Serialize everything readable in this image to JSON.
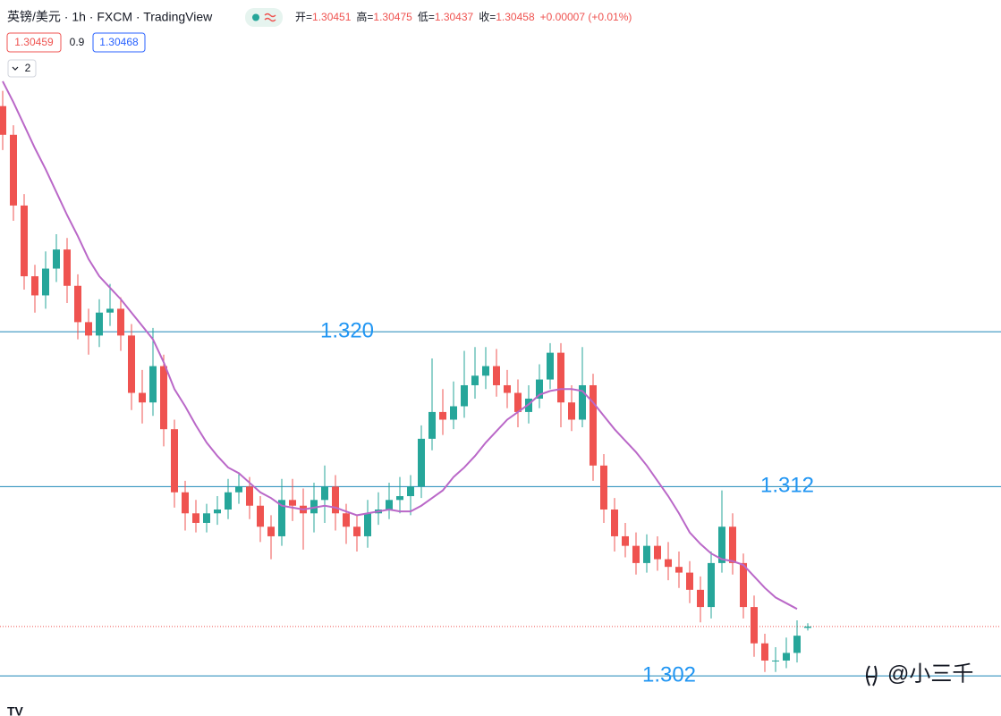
{
  "chart_data": {
    "type": "candlestick",
    "title": "英镑/美元 · 1h · FXCM · TradingView",
    "ohlc_legend": [
      {
        "label": "开=",
        "value": 1.30451
      },
      {
        "label": "高=",
        "value": 1.30475
      },
      {
        "label": "低=",
        "value": 1.30437
      },
      {
        "label": "收=",
        "value": 1.30458
      }
    ],
    "change_text": "+0.00007 (+0.01%)",
    "bid": "1.30459",
    "spread": "0.9",
    "ask": "1.30468",
    "indicator_count": "2",
    "watermark": "@小三千",
    "ylim": [
      1.2999,
      1.33735
    ],
    "up_color": "#26a69a",
    "down_color": "#ef5350",
    "ma_color": "#ba68c8",
    "level_color": "#2196f3",
    "levels": [
      {
        "value": 1.32,
        "label": "1.320"
      },
      {
        "value": 1.3119,
        "label": "1.312"
      },
      {
        "value": 1.302,
        "label": "1.302"
      }
    ],
    "open": [
      1.3318,
      1.3303,
      1.3266,
      1.3229,
      1.3219,
      1.3233,
      1.3243,
      1.3224,
      1.3205,
      1.3198,
      1.321,
      1.3212,
      1.3198,
      1.3168,
      1.3163,
      1.3182,
      1.3149,
      1.3116,
      1.3105,
      1.31,
      1.3105,
      1.3107,
      1.3116,
      1.3119,
      1.3109,
      1.3098,
      1.3093,
      1.3112,
      1.3109,
      1.3105,
      1.3112,
      1.3119,
      1.3105,
      1.3098,
      1.3093,
      1.3105,
      1.3107,
      1.3112,
      1.3114,
      1.3119,
      1.3144,
      1.3158,
      1.3154,
      1.3161,
      1.3172,
      1.3177,
      1.3182,
      1.3172,
      1.3168,
      1.3158,
      1.3165,
      1.3175,
      1.3189,
      1.3163,
      1.3154,
      1.3172,
      1.313,
      1.3107,
      1.3093,
      1.3088,
      1.3079,
      1.3088,
      1.3081,
      1.3077,
      1.3074,
      1.3065,
      1.3056,
      1.3079,
      1.3098,
      1.3079,
      1.3056,
      1.3037,
      1.3028,
      1.3028,
      1.3032,
      1.30451
    ],
    "high": [
      1.3326,
      1.3308,
      1.3272,
      1.3235,
      1.3242,
      1.3251,
      1.3249,
      1.323,
      1.3212,
      1.3217,
      1.3225,
      1.3218,
      1.3204,
      1.318,
      1.3202,
      1.3188,
      1.3154,
      1.3122,
      1.3112,
      1.311,
      1.3114,
      1.3123,
      1.3126,
      1.3124,
      1.3114,
      1.3104,
      1.3123,
      1.3123,
      1.3118,
      1.3121,
      1.313,
      1.3125,
      1.311,
      1.3104,
      1.3112,
      1.3116,
      1.3121,
      1.3124,
      1.3125,
      1.3151,
      1.3186,
      1.317,
      1.3174,
      1.319,
      1.3192,
      1.3192,
      1.3191,
      1.318,
      1.3175,
      1.3172,
      1.3183,
      1.3194,
      1.3194,
      1.3172,
      1.3192,
      1.3178,
      1.3136,
      1.3113,
      1.31,
      1.3095,
      1.3094,
      1.3093,
      1.309,
      1.3085,
      1.308,
      1.3072,
      1.3085,
      1.3117,
      1.3105,
      1.3084,
      1.3062,
      1.3042,
      1.3035,
      1.304,
      1.3049,
      1.30475
    ],
    "low": [
      1.3295,
      1.3258,
      1.3222,
      1.321,
      1.3212,
      1.3226,
      1.3215,
      1.3196,
      1.3188,
      1.3192,
      1.3203,
      1.319,
      1.3159,
      1.3152,
      1.3156,
      1.314,
      1.3108,
      1.3096,
      1.3095,
      1.3095,
      1.3099,
      1.3102,
      1.311,
      1.3102,
      1.309,
      1.3081,
      1.3088,
      1.3101,
      1.3086,
      1.3095,
      1.31,
      1.3096,
      1.3089,
      1.3085,
      1.3087,
      1.3099,
      1.3102,
      1.3105,
      1.3104,
      1.3113,
      1.3138,
      1.3146,
      1.3149,
      1.3155,
      1.3165,
      1.317,
      1.3166,
      1.316,
      1.315,
      1.3152,
      1.316,
      1.317,
      1.315,
      1.3148,
      1.315,
      1.3122,
      1.31,
      1.3085,
      1.3082,
      1.3073,
      1.3074,
      1.3075,
      1.307,
      1.3066,
      1.3058,
      1.3048,
      1.305,
      1.3074,
      1.3073,
      1.305,
      1.303,
      1.3022,
      1.3022,
      1.3024,
      1.3027,
      1.30437
    ],
    "close": [
      1.3303,
      1.3266,
      1.3229,
      1.3219,
      1.3233,
      1.3243,
      1.3224,
      1.3205,
      1.3198,
      1.321,
      1.3212,
      1.3198,
      1.3168,
      1.3163,
      1.3182,
      1.3149,
      1.3116,
      1.3105,
      1.31,
      1.3105,
      1.3107,
      1.3116,
      1.3119,
      1.3109,
      1.3098,
      1.3093,
      1.3112,
      1.3109,
      1.3105,
      1.3112,
      1.3119,
      1.3105,
      1.3098,
      1.3093,
      1.3105,
      1.3107,
      1.3112,
      1.3114,
      1.3119,
      1.3144,
      1.3158,
      1.3154,
      1.3161,
      1.3172,
      1.3177,
      1.3182,
      1.3172,
      1.3168,
      1.3158,
      1.3165,
      1.3175,
      1.3189,
      1.3163,
      1.3154,
      1.3172,
      1.313,
      1.3107,
      1.3093,
      1.3088,
      1.3079,
      1.3088,
      1.3081,
      1.3077,
      1.3074,
      1.3065,
      1.3056,
      1.3079,
      1.3098,
      1.3079,
      1.3056,
      1.3037,
      1.3028,
      1.3028,
      1.3032,
      1.3041,
      1.30458
    ],
    "ma": [
      1.3331,
      1.332,
      1.3308,
      1.3296,
      1.3285,
      1.3273,
      1.3261,
      1.325,
      1.3238,
      1.3229,
      1.3223,
      1.3217,
      1.321,
      1.3203,
      1.3196,
      1.3184,
      1.317,
      1.3161,
      1.3151,
      1.3142,
      1.3135,
      1.3129,
      1.3126,
      1.3121,
      1.3116,
      1.3113,
      1.3109,
      1.3108,
      1.3107,
      1.3108,
      1.3109,
      1.3108,
      1.3106,
      1.3104,
      1.3105,
      1.3106,
      1.3107,
      1.3106,
      1.3106,
      1.3109,
      1.3113,
      1.3117,
      1.3124,
      1.3129,
      1.3135,
      1.3142,
      1.3148,
      1.3154,
      1.3158,
      1.3162,
      1.3167,
      1.3169,
      1.317,
      1.317,
      1.3169,
      1.3163,
      1.3156,
      1.3149,
      1.3143,
      1.3137,
      1.313,
      1.3122,
      1.3114,
      1.3105,
      1.3095,
      1.3089,
      1.3084,
      1.3081,
      1.308,
      1.3078,
      1.3072,
      1.3066,
      1.3061,
      1.3058,
      1.3055,
      null
    ]
  }
}
